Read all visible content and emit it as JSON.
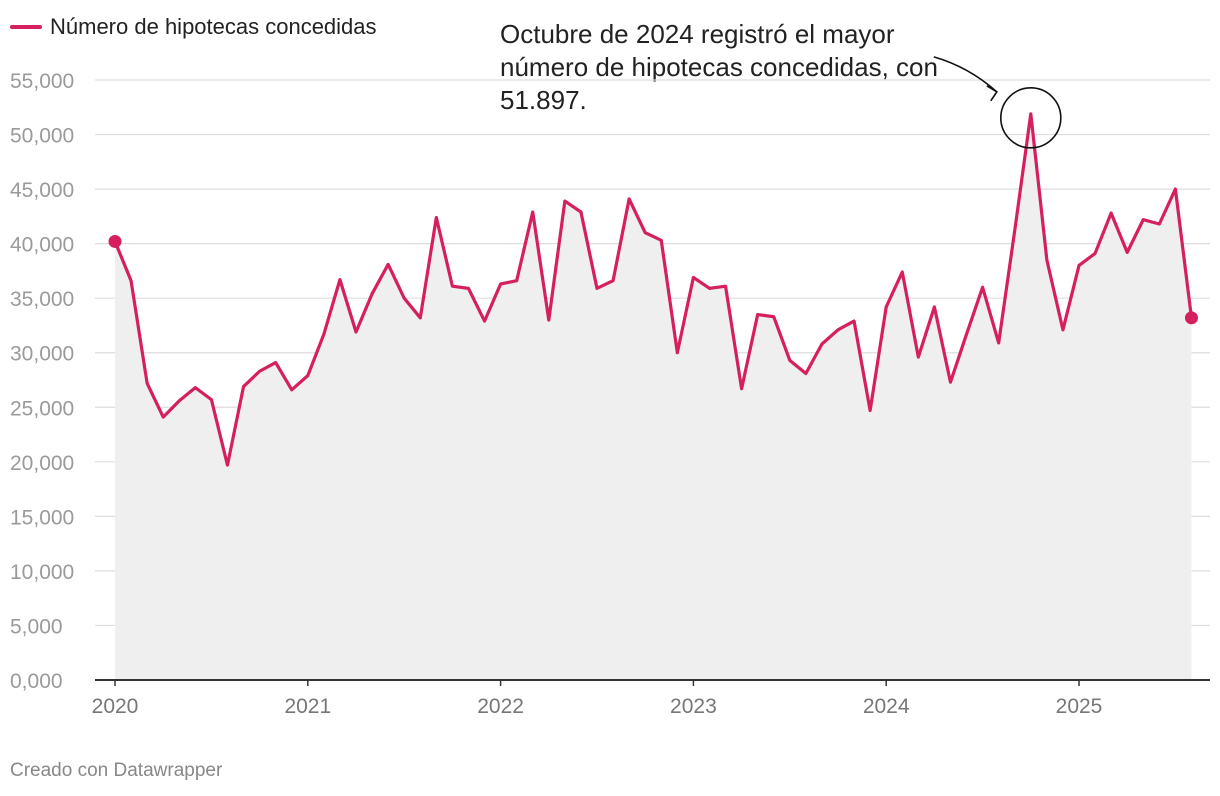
{
  "chart_data": {
    "type": "line",
    "title": "",
    "xlabel": "",
    "ylabel": "",
    "ylim": [
      0,
      55000
    ],
    "yticks": [
      0,
      5000,
      10000,
      15000,
      20000,
      25000,
      30000,
      35000,
      40000,
      45000,
      50000,
      55000
    ],
    "ytick_labels": [
      "0,000",
      "5,000",
      "10,000",
      "15,000",
      "20,000",
      "25,000",
      "30,000",
      "35,000",
      "40,000",
      "45,000",
      "50,000",
      "55,000"
    ],
    "xtick_labels": [
      "2020",
      "2021",
      "2022",
      "2023",
      "2024",
      "2025"
    ],
    "grid": true,
    "legend": {
      "position": "top-left",
      "label": "Número de hipotecas concedidas"
    },
    "series": [
      {
        "name": "Número de hipotecas concedidas",
        "start": "2020-01",
        "values": [
          40200,
          36600,
          27200,
          24100,
          25600,
          26800,
          25700,
          19700,
          26900,
          28300,
          29100,
          26600,
          27900,
          31700,
          36700,
          31900,
          35400,
          38100,
          35000,
          33200,
          42400,
          36100,
          35900,
          32900,
          36300,
          36600,
          42900,
          33000,
          43900,
          42900,
          35900,
          36600,
          44100,
          41000,
          40300,
          30000,
          36900,
          35900,
          36100,
          26700,
          33500,
          33300,
          29300,
          28100,
          30800,
          32100,
          32900,
          24700,
          34200,
          37400,
          29600,
          34200,
          27300,
          31700,
          36000,
          30900,
          41200,
          51897,
          38500,
          32100,
          38000,
          39100,
          42800,
          39200,
          42200,
          41800,
          45000,
          33200
        ]
      }
    ],
    "annotations": [
      {
        "text": "Octubre de 2024 registró el mayor número de hipotecas concedidas, con 51.897.",
        "target": "2024-10",
        "value": 51897
      }
    ]
  },
  "colors": {
    "line": "#d61f5e",
    "area": "#efefef",
    "grid": "#dddddd",
    "axis": "#333333"
  },
  "footer": {
    "credit": "Creado con Datawrapper"
  }
}
